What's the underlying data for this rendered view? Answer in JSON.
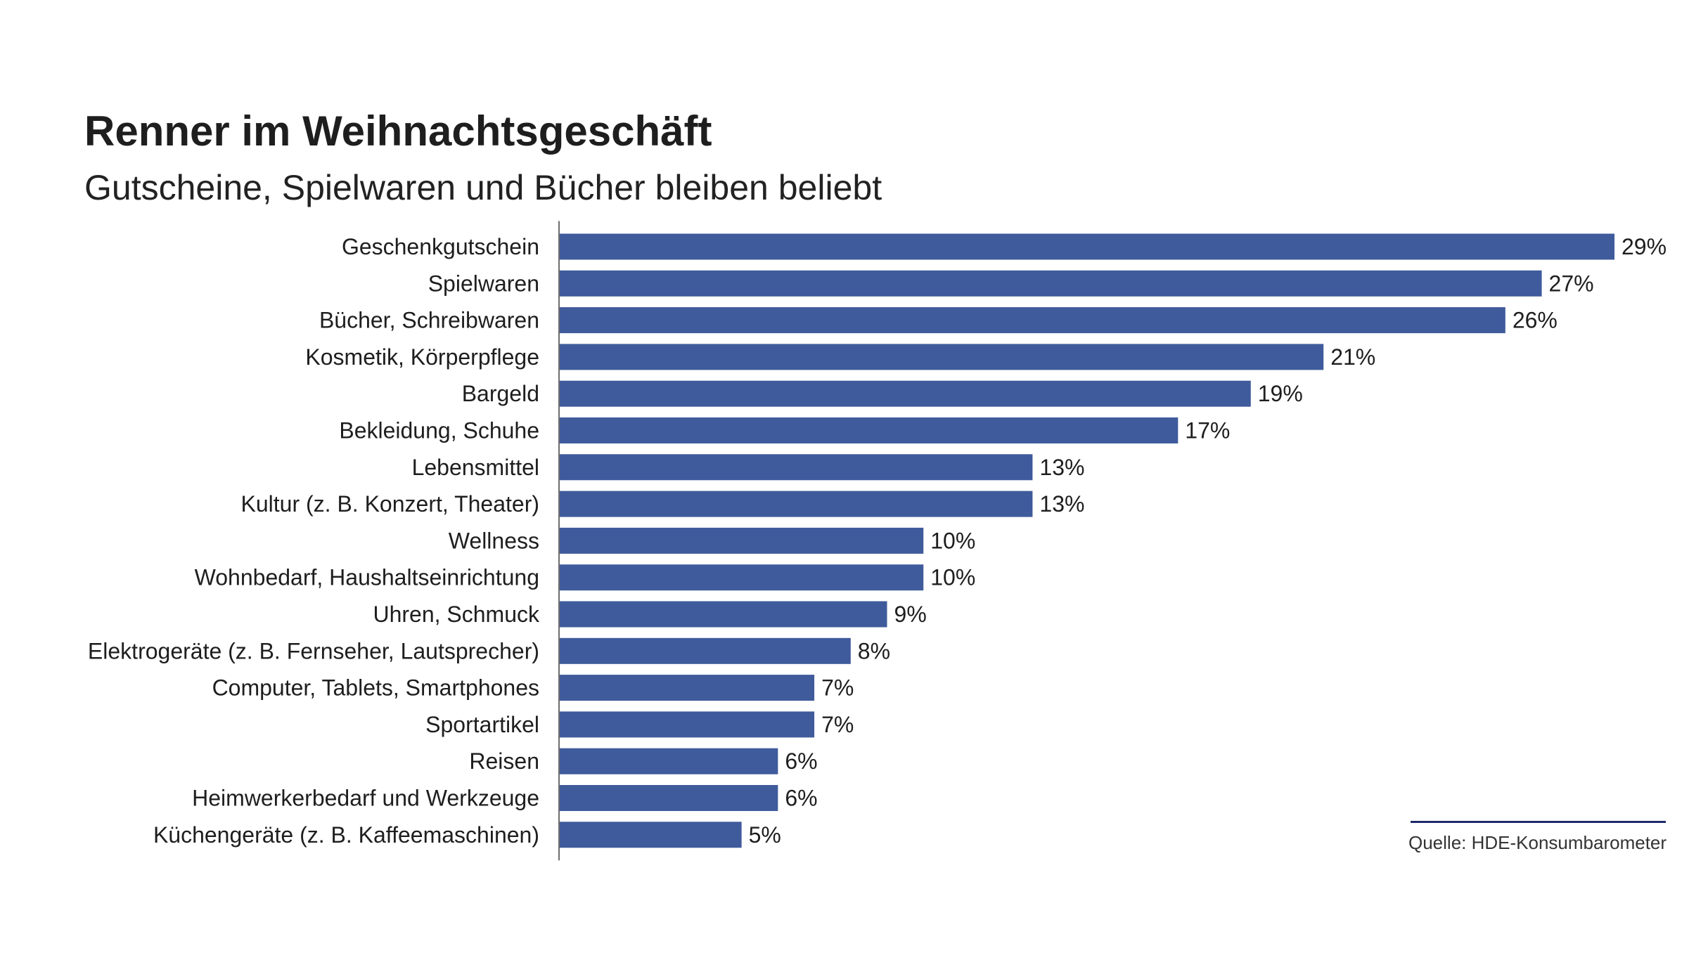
{
  "header": {
    "title": "Renner im Weihnachtsgeschäft",
    "subtitle": "Gutscheine, Spielwaren und Bücher bleiben beliebt"
  },
  "source": "Quelle: HDE-Konsumbarometer",
  "colors": {
    "bar": "#3f5b9c",
    "axis": "#6e6e6e",
    "text": "#1e1e1e",
    "source_rule": "#1f2a6b"
  },
  "chart_data": {
    "type": "bar",
    "orientation": "horizontal",
    "title": "Renner im Weihnachtsgeschäft",
    "subtitle": "Gutscheine, Spielwaren und Bücher bleiben beliebt",
    "categories": [
      "Geschenkgutschein",
      "Spielwaren",
      "Bücher, Schreibwaren",
      "Kosmetik, Körperpflege",
      "Bargeld",
      "Bekleidung, Schuhe",
      "Lebensmittel",
      "Kultur (z. B. Konzert, Theater)",
      "Wellness",
      "Wohnbedarf, Haushaltseinrichtung",
      "Uhren, Schmuck",
      "Elektrogeräte (z. B. Fernseher, Lautsprecher)",
      "Computer, Tablets, Smartphones",
      "Sportartikel",
      "Reisen",
      "Heimwerkerbedarf und Werkzeuge",
      "Küchengeräte (z. B. Kaffeemaschinen)"
    ],
    "values": [
      29,
      27,
      26,
      21,
      19,
      17,
      13,
      13,
      10,
      10,
      9,
      8,
      7,
      7,
      6,
      6,
      5
    ],
    "value_labels": [
      "29%",
      "27%",
      "26%",
      "21%",
      "19%",
      "17%",
      "13%",
      "13%",
      "10%",
      "10%",
      "9%",
      "8%",
      "7%",
      "7%",
      "6%",
      "6%",
      "5%"
    ],
    "unit": "%",
    "xlim": [
      0,
      29
    ],
    "grid": false,
    "legend": "none"
  }
}
